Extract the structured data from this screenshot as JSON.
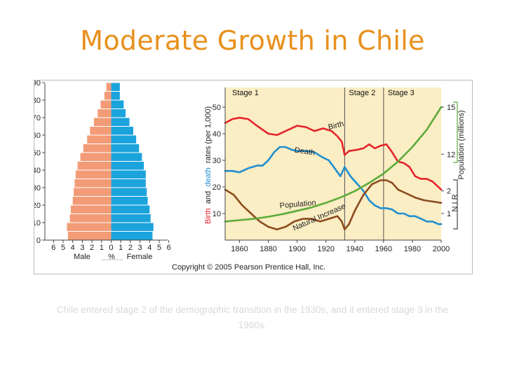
{
  "slide": {
    "title": "Moderate Growth in Chile",
    "caption": "Chile entered stage 2 of the demographic transition in the 1930s, and it entered stage 3 in the 1960s.",
    "copyright": "Copyright © 2005 Pearson Prentice Hall, Inc."
  },
  "colors": {
    "title": "#e8901c",
    "male": "#f39b77",
    "female": "#1ba3dc",
    "birth": "#e5242b",
    "death": "#1f8fd0",
    "natural_increase": "#8a4b1e",
    "population": "#5cab38",
    "panel_bg": "#fbedc4"
  },
  "chart_data": [
    {
      "type": "bar",
      "subtype": "population-pyramid",
      "categories": [
        "0",
        "5",
        "10",
        "15",
        "20",
        "25",
        "30",
        "35",
        "40",
        "45",
        "50",
        "55",
        "60",
        "65",
        "70",
        "75",
        "80",
        "85"
      ],
      "series": [
        {
          "name": "Male",
          "values": [
            4.5,
            4.6,
            4.3,
            4.2,
            4.0,
            3.9,
            3.8,
            3.7,
            3.5,
            3.2,
            2.9,
            2.5,
            2.2,
            1.8,
            1.4,
            1.1,
            0.7,
            0.5
          ]
        },
        {
          "name": "Female",
          "values": [
            4.3,
            4.4,
            4.1,
            4.0,
            3.8,
            3.7,
            3.6,
            3.6,
            3.4,
            3.2,
            2.9,
            2.6,
            2.3,
            1.9,
            1.5,
            1.3,
            0.9,
            0.9
          ]
        }
      ],
      "yticks": [
        "0",
        "10",
        "20",
        "30",
        "40",
        "50",
        "60",
        "70",
        "80",
        "90"
      ],
      "xticks": [
        "6",
        "5",
        "4",
        "3",
        "2",
        "1",
        "0",
        "1",
        "2",
        "3",
        "4",
        "5",
        "6"
      ],
      "xlabel_left": "Male",
      "xlabel_center": "%",
      "xlabel_right": "Female",
      "ylim": [
        0,
        90
      ],
      "xlim": [
        -6,
        6
      ]
    },
    {
      "type": "line",
      "x_ticks": [
        "1860",
        "1880",
        "1900",
        "1920",
        "1940",
        "1960",
        "1980",
        "2000"
      ],
      "xlim": [
        1850,
        2000
      ],
      "ylim": [
        0,
        52
      ],
      "y_ticks": [
        "10",
        "20",
        "30",
        "40",
        "50"
      ],
      "ylabel_parts": {
        "birth": "Birth",
        "and": " and ",
        "death": "death",
        "rest": " rates (per 1,000)"
      },
      "right_axis_population": {
        "ticks": [
          "12",
          "15"
        ],
        "label": "Population (millions)"
      },
      "right_axis_nir": {
        "ticks": [
          "1",
          "2"
        ],
        "label": "N I R"
      },
      "stages": [
        {
          "label": "Stage 1",
          "start": 1850
        },
        {
          "label": "Stage 2",
          "start": 1933
        },
        {
          "label": "Stage 3",
          "start": 1960
        }
      ],
      "series": [
        {
          "name": "Birth",
          "label": "Birth",
          "x": [
            1850,
            1855,
            1860,
            1866,
            1872,
            1880,
            1886,
            1892,
            1900,
            1906,
            1912,
            1918,
            1924,
            1928,
            1931,
            1933,
            1936,
            1942,
            1946,
            1950,
            1954,
            1958,
            1962,
            1966,
            1970,
            1974,
            1978,
            1982,
            1986,
            1990,
            1994,
            2000
          ],
          "y": [
            44,
            45.5,
            46,
            45.5,
            43,
            40,
            39.5,
            41,
            43,
            42.5,
            41,
            42,
            41,
            39,
            37,
            32,
            33.5,
            34,
            34.5,
            36,
            34.5,
            35.5,
            36,
            33,
            29.5,
            29,
            27.5,
            24,
            23,
            23,
            22,
            19
          ]
        },
        {
          "name": "Death",
          "label": "Death",
          "x": [
            1850,
            1855,
            1860,
            1866,
            1872,
            1876,
            1880,
            1884,
            1888,
            1892,
            1896,
            1900,
            1906,
            1912,
            1918,
            1922,
            1926,
            1930,
            1933,
            1937,
            1942,
            1946,
            1950,
            1954,
            1958,
            1962,
            1966,
            1970,
            1974,
            1978,
            1982,
            1986,
            1990,
            1994,
            1998,
            2000
          ],
          "y": [
            26,
            26,
            25.5,
            27,
            28,
            28,
            30,
            33,
            35,
            35,
            34,
            33.5,
            33.5,
            33,
            31,
            30,
            27,
            24,
            27.5,
            24,
            21,
            18.5,
            15,
            13,
            12,
            12,
            11.5,
            10,
            10,
            9,
            9,
            8,
            7,
            7,
            6,
            6
          ]
        },
        {
          "name": "Natural increase",
          "label": "Natural Increase",
          "x": [
            1850,
            1856,
            1862,
            1868,
            1874,
            1880,
            1886,
            1892,
            1898,
            1904,
            1910,
            1916,
            1922,
            1928,
            1931,
            1933,
            1936,
            1940,
            1946,
            1952,
            1958,
            1962,
            1966,
            1970,
            1976,
            1982,
            1988,
            1994,
            2000
          ],
          "y": [
            19,
            17,
            13,
            10,
            7,
            5,
            4,
            5,
            7,
            8,
            8,
            7,
            8,
            9,
            7,
            4,
            6,
            11,
            17,
            21,
            22.5,
            22.5,
            21.5,
            19,
            17.5,
            16,
            15,
            14.5,
            14
          ]
        },
        {
          "name": "Population",
          "label": "Population",
          "x": [
            1850,
            1860,
            1870,
            1880,
            1890,
            1900,
            1910,
            1920,
            1930,
            1940,
            1950,
            1960,
            1970,
            1980,
            1990,
            2000
          ],
          "y": [
            7,
            7.5,
            8,
            8.8,
            9.8,
            11,
            12.3,
            14,
            16,
            18.4,
            21.5,
            25,
            29.5,
            35,
            41.5,
            50
          ]
        }
      ]
    }
  ]
}
